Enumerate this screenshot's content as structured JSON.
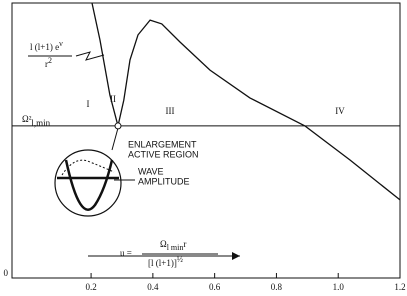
{
  "chart_data": {
    "type": "line",
    "x": [
      0.203,
      0.229,
      0.261,
      0.287,
      0.306,
      0.326,
      0.352,
      0.391,
      0.429,
      0.488,
      0.585,
      0.714,
      0.892,
      1.038,
      1.2
    ],
    "series": [
      {
        "color": "#111111",
        "values": [
          1.0,
          0.865,
          0.665,
          0.553,
          0.647,
          0.793,
          0.884,
          0.938,
          0.924,
          0.858,
          0.756,
          0.655,
          0.553,
          0.429,
          0.284
        ]
      }
    ],
    "reference_line": {
      "y": 0.553,
      "label": "Ω²",
      "sub": "l,min"
    },
    "xlim": [
      -0.056,
      1.2
    ],
    "ylim": [
      0,
      1
    ],
    "xticks": [
      0.2,
      0.4,
      0.6,
      0.8,
      {
        "value": 1.0,
        "label": "1.0"
      },
      1.2
    ],
    "yticks": [
      0
    ],
    "potential_label": {
      "numerator": "l (l+1) e",
      "numerator_sup": "ν",
      "denominator": "r",
      "denominator_sup": "2"
    },
    "regions": [
      "I",
      "II",
      "III",
      "IV"
    ],
    "inset_label": [
      "ENLARGEMENT",
      "ACTIVE REGION"
    ],
    "wave_label": [
      "WAVE",
      "AMPLITUDE"
    ],
    "u_label": {
      "lhs": "u =",
      "numerator": "Ω",
      "numerator_sub": "l min",
      "numerator_tail": "r",
      "denominator": "[l (l+1)]",
      "denominator_sup": "½"
    }
  }
}
